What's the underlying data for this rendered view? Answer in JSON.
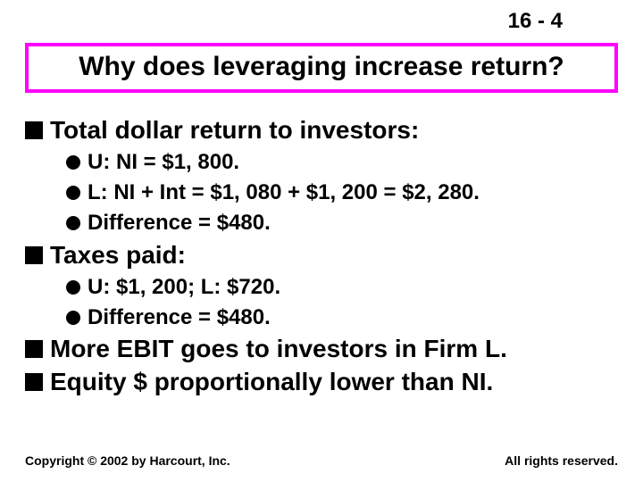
{
  "page_number": "16 - 4",
  "title": "Why does leveraging increase return?",
  "title_border_color": "#ff00ff",
  "bullets": {
    "b1": "Total dollar return to investors:",
    "b1a": "U:  NI = $1, 800.",
    "b1b": "L:  NI + Int   = $1, 080 + $1, 200 = $2, 280.",
    "b1c": "Difference   = $480.",
    "b2": "Taxes paid:",
    "b2a": "U:  $1, 200;  L:  $720.",
    "b2b": "Difference = $480.",
    "b3": "More EBIT goes to investors in Firm L.",
    "b4": "Equity $ proportionally lower than NI."
  },
  "footer_left": "Copyright © 2002 by Harcourt, Inc.",
  "footer_right": "All rights reserved."
}
